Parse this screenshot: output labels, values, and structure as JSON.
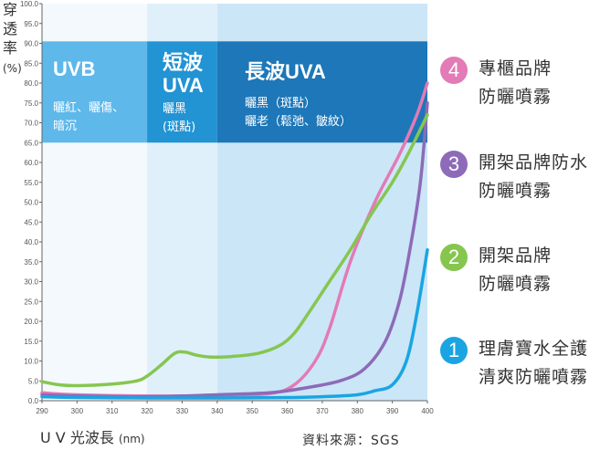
{
  "chart_data": {
    "type": "line",
    "ylabel": [
      "穿",
      "透",
      "率",
      "(%)"
    ],
    "xlabel": "U V 光波長",
    "xlabel_unit": "(nm)",
    "source": "資料來源：SGS",
    "xlim": [
      290,
      400
    ],
    "ylim": [
      0,
      100
    ],
    "x_ticks": [
      290,
      300,
      310,
      320,
      330,
      340,
      350,
      360,
      370,
      380,
      390,
      400
    ],
    "y_ticks": [
      "0.0",
      "5.0",
      "10.0",
      "15.0",
      "20.0",
      "25.0",
      "30.0",
      "35.0",
      "40.0",
      "45.0",
      "50.0",
      "55.0",
      "60.0",
      "65.0",
      "70.0",
      "75.0",
      "80.0",
      "85.0",
      "90.0",
      "95.0",
      "100.0"
    ],
    "grid": false,
    "bands": [
      {
        "range": [
          290,
          320
        ],
        "title_lines": [
          "UVB"
        ],
        "desc_lines": [
          "曬紅、曬傷、",
          "暗沉"
        ],
        "color": "#5eb8ea"
      },
      {
        "range": [
          320,
          340
        ],
        "title_lines": [
          "短波",
          "UVA"
        ],
        "desc_lines": [
          "曬黑",
          "(斑點)"
        ],
        "color": "#2293d3"
      },
      {
        "range": [
          340,
          400
        ],
        "title_lines": [
          "長波UVA"
        ],
        "desc_lines": [
          "曬黑（斑點）",
          "曬老（鬆弛、皺紋）"
        ],
        "color": "#1d77b8"
      }
    ],
    "series": [
      {
        "number": "4",
        "name_lines": [
          "專櫃品牌",
          "防曬噴霧"
        ],
        "color": "#e27bb6",
        "points": [
          [
            290,
            2
          ],
          [
            300,
            1.5
          ],
          [
            320,
            1.2
          ],
          [
            340,
            1.3
          ],
          [
            355,
            1.8
          ],
          [
            362,
            4
          ],
          [
            368,
            10
          ],
          [
            372,
            18
          ],
          [
            378,
            35
          ],
          [
            385,
            50
          ],
          [
            392,
            62
          ],
          [
            397,
            72
          ],
          [
            400,
            80
          ]
        ]
      },
      {
        "number": "3",
        "name_lines": [
          "開架品牌防水",
          "防曬噴霧"
        ],
        "color": "#8d6bb8",
        "points": [
          [
            290,
            1.5
          ],
          [
            300,
            1.2
          ],
          [
            320,
            1
          ],
          [
            340,
            1.5
          ],
          [
            355,
            2
          ],
          [
            365,
            3.2
          ],
          [
            375,
            5
          ],
          [
            382,
            8
          ],
          [
            388,
            15
          ],
          [
            392,
            25
          ],
          [
            395,
            38
          ],
          [
            398,
            55
          ],
          [
            400,
            75
          ]
        ]
      },
      {
        "number": "2",
        "name_lines": [
          "開架品牌",
          "防曬噴霧"
        ],
        "color": "#86c64f",
        "points": [
          [
            290,
            4.8
          ],
          [
            295,
            4
          ],
          [
            300,
            3.8
          ],
          [
            310,
            4.2
          ],
          [
            317,
            5
          ],
          [
            320,
            6.2
          ],
          [
            324,
            9
          ],
          [
            328,
            12
          ],
          [
            331,
            12.2
          ],
          [
            334,
            11.5
          ],
          [
            338,
            11
          ],
          [
            345,
            11.2
          ],
          [
            352,
            12
          ],
          [
            358,
            14
          ],
          [
            362,
            17
          ],
          [
            366,
            22
          ],
          [
            372,
            30
          ],
          [
            378,
            38
          ],
          [
            384,
            47
          ],
          [
            390,
            55
          ],
          [
            395,
            63
          ],
          [
            400,
            72
          ]
        ]
      },
      {
        "number": "1",
        "name_lines": [
          "理膚寶水全護",
          "清爽防曬噴霧"
        ],
        "color": "#1aa5e2",
        "points": [
          [
            290,
            1
          ],
          [
            300,
            0.8
          ],
          [
            320,
            0.7
          ],
          [
            340,
            0.7
          ],
          [
            360,
            0.8
          ],
          [
            370,
            1
          ],
          [
            380,
            1.5
          ],
          [
            385,
            2.5
          ],
          [
            390,
            4
          ],
          [
            394,
            10
          ],
          [
            397,
            22
          ],
          [
            400,
            38
          ]
        ]
      }
    ]
  }
}
